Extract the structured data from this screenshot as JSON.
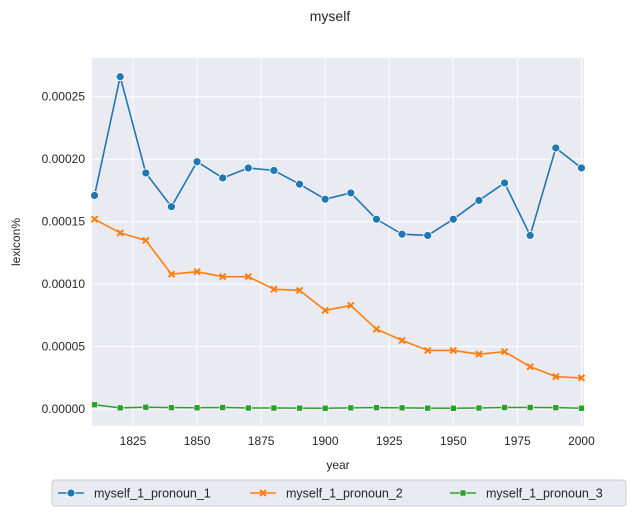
{
  "chart_data": {
    "type": "line",
    "title": "myself",
    "xlabel": "year",
    "ylabel": "lexicon%",
    "xlim": [
      1809,
      2001
    ],
    "ylim": [
      -1.35e-05,
      0.000281
    ],
    "grid": true,
    "legend_position": "bottom",
    "x": [
      1810,
      1820,
      1830,
      1840,
      1850,
      1860,
      1870,
      1880,
      1890,
      1900,
      1910,
      1920,
      1930,
      1940,
      1950,
      1960,
      1970,
      1980,
      1990,
      2000
    ],
    "xticks": [
      1825,
      1850,
      1875,
      1900,
      1925,
      1950,
      1975,
      2000
    ],
    "xtick_labels": [
      "1825",
      "1850",
      "1875",
      "1900",
      "1925",
      "1950",
      "1975",
      "2000"
    ],
    "yticks": [
      0,
      5e-05,
      0.0001,
      0.00015,
      0.0002,
      0.00025
    ],
    "ytick_labels": [
      "0.00000",
      "0.00005",
      "0.00010",
      "0.00015",
      "0.00020",
      "0.00025"
    ],
    "series": [
      {
        "name": "myself_1_pronoun_1",
        "color": "#1f77b4",
        "marker": "circle",
        "values": [
          0.000171,
          0.000266,
          0.000189,
          0.000162,
          0.000198,
          0.000185,
          0.000193,
          0.000191,
          0.00018,
          0.000168,
          0.000173,
          0.000152,
          0.00014,
          0.000139,
          0.000152,
          0.000167,
          0.000181,
          0.000139,
          0.000209,
          0.000193
        ]
      },
      {
        "name": "myself_1_pronoun_2",
        "color": "#ff7f0e",
        "marker": "x",
        "values": [
          0.000152,
          0.000141,
          0.000135,
          0.000108,
          0.00011,
          0.000106,
          0.000106,
          9.6e-05,
          9.5e-05,
          7.9e-05,
          8.3e-05,
          6.4e-05,
          5.5e-05,
          4.7e-05,
          4.7e-05,
          4.4e-05,
          4.6e-05,
          3.4e-05,
          2.6e-05,
          2.5e-05
        ]
      },
      {
        "name": "myself_1_pronoun_3",
        "color": "#2ca02c",
        "marker": "square",
        "values": [
          3.5e-06,
          1e-06,
          1.5e-06,
          1.2e-06,
          1.1e-06,
          1.3e-06,
          9e-07,
          9e-07,
          8e-07,
          7e-07,
          1e-06,
          1.2e-06,
          1e-06,
          8e-07,
          7e-07,
          9e-07,
          1.3e-06,
          1.3e-06,
          1.2e-06,
          7e-07
        ]
      }
    ]
  }
}
